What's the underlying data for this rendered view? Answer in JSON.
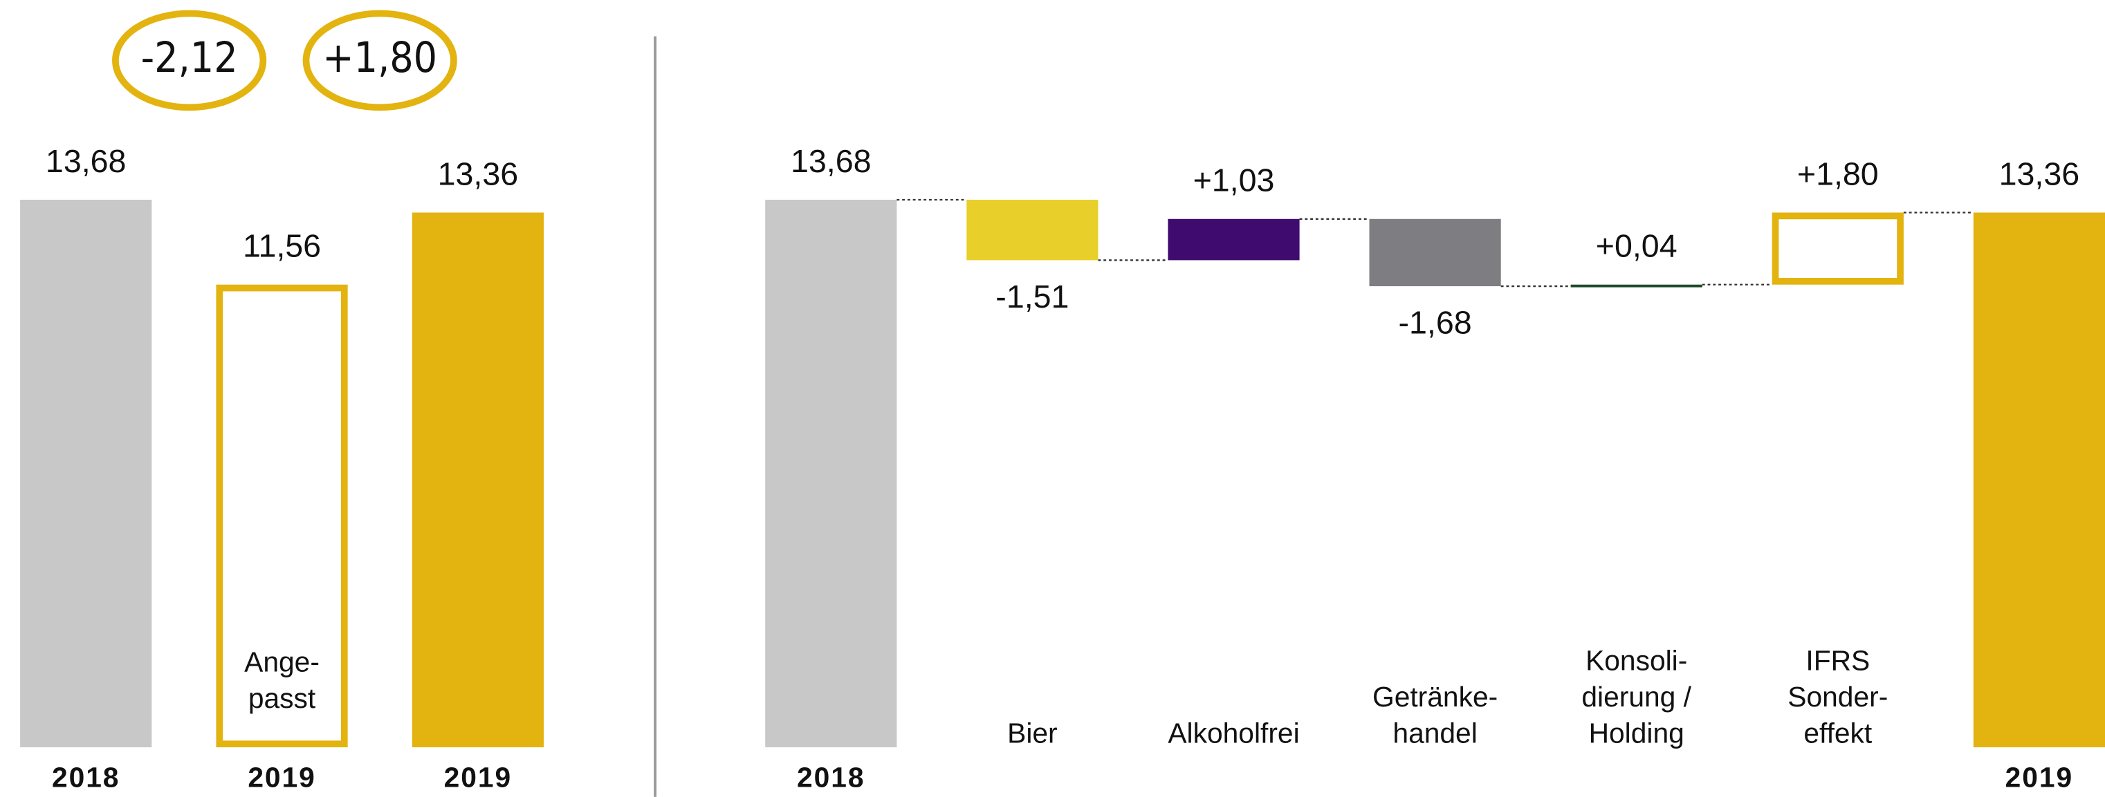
{
  "chart_data": [
    {
      "type": "bar",
      "categories": [
        "2018",
        "2019",
        "2019"
      ],
      "values": [
        13.68,
        11.56,
        13.36
      ],
      "value_labels": [
        "13,68",
        "11,56",
        "13,36"
      ],
      "colors": [
        "#c8c8c8",
        "#e3b30f",
        "#e3b30f"
      ],
      "filled": [
        true,
        false,
        true
      ],
      "bar_labels": [
        null,
        [
          "Ange-",
          "passt"
        ],
        null
      ],
      "annotations": [
        "-2,12",
        "+1,80"
      ],
      "ylim": [
        0,
        14
      ]
    },
    {
      "type": "waterfall",
      "categories": [
        [
          "2018"
        ],
        [
          "Bier"
        ],
        [
          "Alkoholfrei"
        ],
        [
          "Getränke-",
          "handel"
        ],
        [
          "Konsoli-",
          "dierung /",
          "Holding"
        ],
        [
          "IFRS",
          "Sonder-",
          "effekt"
        ],
        [
          "2019"
        ]
      ],
      "values": [
        13.68,
        -1.51,
        1.03,
        -1.68,
        0.04,
        1.8,
        13.36
      ],
      "value_labels": [
        "13,68",
        "-1,51",
        "+1,03",
        "-1,68",
        "+0,04",
        "+1,80",
        "13,36"
      ],
      "colors": [
        "#c8c8c8",
        "#e8cf2a",
        "#400b6e",
        "#7e7e82",
        "#1f4a2a",
        "#e3b30f",
        "#e3b30f"
      ],
      "filled": [
        true,
        true,
        true,
        true,
        true,
        false,
        true
      ],
      "ylim": [
        0,
        14
      ]
    }
  ]
}
